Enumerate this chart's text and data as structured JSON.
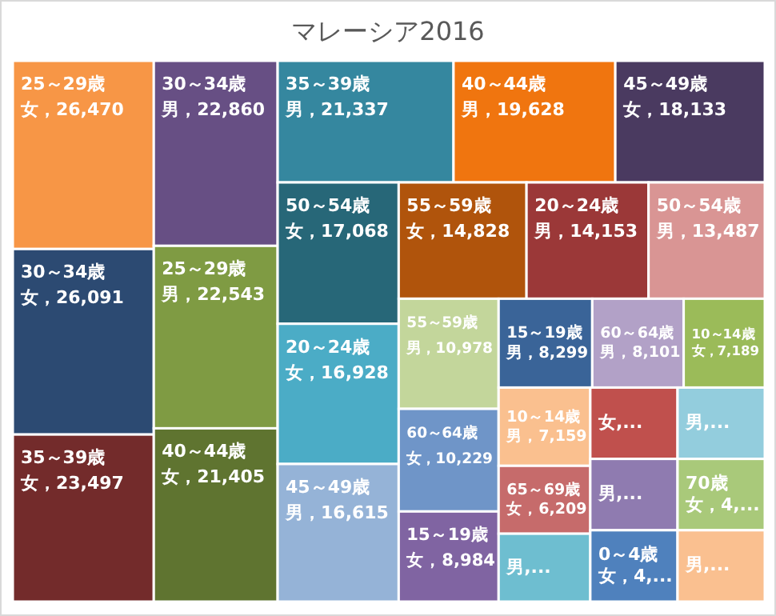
{
  "chart_data": {
    "type": "other",
    "title": "マレーシア2016",
    "categories": [
      "25～29歳",
      "30～34歳",
      "35～39歳",
      "30～34歳",
      "25～29歳",
      "40～44歳",
      "35～39歳",
      "40～44歳",
      "45～49歳",
      "50～54歳",
      "20～24歳",
      "45～49歳",
      "55～59歳",
      "20～24歳",
      "50～54歳",
      "55～59歳",
      "60～64歳",
      "15～19歳",
      "15～19歳",
      "60～64歳",
      "10～14歳",
      "10～14歳",
      "65～69歳",
      null,
      null,
      null,
      null,
      "0～4歳",
      "70歳",
      null
    ],
    "value_labels": [
      "女，26,470",
      "女，26,091",
      "女，23,497",
      "男，22,860",
      "男，22,543",
      "女，21,405",
      "男，21,337",
      "男，19,628",
      "女，18,133",
      "女，17,068",
      "女，16,928",
      "男，16,615",
      "女，14,828",
      "男，14,153",
      "男，13,487",
      "男，10,978",
      "女，10,229",
      "女，8,984",
      "男，8,299",
      "男，8,101",
      "女，7,189",
      "男，7,159",
      "女，6,209",
      "男,...",
      "女,...",
      "男,...",
      "男,...",
      "女，4,...",
      "女，4,...",
      "男,..."
    ],
    "values": [
      26470,
      26091,
      23497,
      22860,
      22543,
      21405,
      21337,
      19628,
      18133,
      17068,
      16928,
      16615,
      14828,
      14153,
      13487,
      10978,
      10229,
      8984,
      8299,
      8101,
      7189,
      7159,
      6209,
      null,
      null,
      null,
      null,
      null,
      null,
      null
    ],
    "colors": [
      "#f79646",
      "#2c4a72",
      "#732b2b",
      "#674f84",
      "#7f9b43",
      "#5f7430",
      "#35879f",
      "#f0750f",
      "#4a3a60",
      "#276778",
      "#4bacc6",
      "#95b3d7",
      "#b0540c",
      "#9b3838",
      "#d99594",
      "#c3d69b",
      "#6f95c8",
      "#8064a2",
      "#3a6498",
      "#b2a1c7",
      "#9bbb59",
      "#fac08f",
      "#c66b6b",
      "#6ebed0",
      "#c0504d",
      "#93cddd",
      "#8f7bb0",
      "#4f81bd",
      "#a9c97a",
      "#fac090"
    ]
  }
}
